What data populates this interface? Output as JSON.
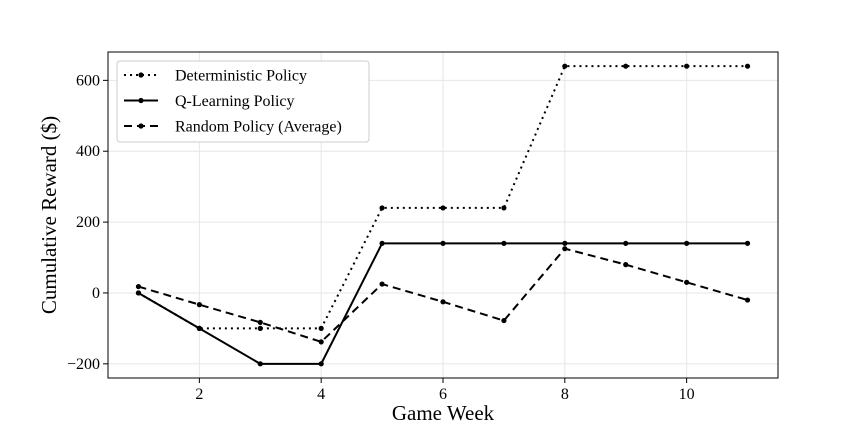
{
  "chart_data": {
    "type": "line",
    "title": "",
    "xlabel": "Game Week",
    "ylabel": "Cumulative Reward ($)",
    "xlim": [
      0.5,
      11.5
    ],
    "ylim": [
      -240,
      680
    ],
    "xticks": [
      2,
      4,
      6,
      8,
      10
    ],
    "yticks": [
      -200,
      0,
      200,
      400,
      600
    ],
    "xtick_labels": [
      "2",
      "4",
      "6",
      "8",
      "10"
    ],
    "ytick_labels": [
      "−200",
      "0",
      "200",
      "400",
      "600"
    ],
    "grid": true,
    "legend_position": "top-left",
    "x": [
      1,
      2,
      3,
      4,
      5,
      6,
      7,
      8,
      9,
      10,
      11
    ],
    "series": [
      {
        "name": "Deterministic Policy",
        "style": "dotted",
        "color": "#000000",
        "values": [
          0,
          -100,
          -100,
          -100,
          240,
          240,
          240,
          640,
          640,
          640,
          640
        ]
      },
      {
        "name": "Q-Learning Policy",
        "style": "solid",
        "color": "#000000",
        "values": [
          0,
          -100,
          -200,
          -200,
          140,
          140,
          140,
          140,
          140,
          140,
          140
        ]
      },
      {
        "name": "Random Policy (Average)",
        "style": "dashed",
        "color": "#000000",
        "values": [
          18,
          -33,
          -83,
          -138,
          25,
          -25,
          -78,
          125,
          80,
          30,
          -20
        ]
      }
    ]
  }
}
